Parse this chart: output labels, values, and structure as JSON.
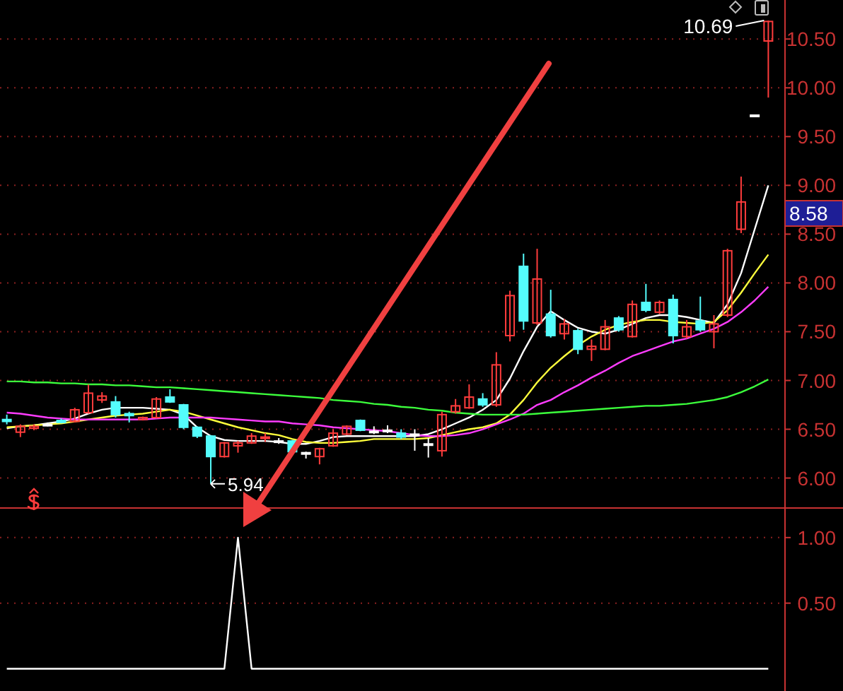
{
  "chart_data": [
    {
      "type": "candlestick",
      "categories": [
        null,
        null,
        null,
        null,
        null,
        null,
        null,
        null,
        null,
        null,
        null,
        null,
        null,
        null,
        null,
        null,
        null,
        null,
        null,
        null,
        null,
        null,
        null,
        null,
        null,
        null,
        null,
        null,
        null,
        null,
        null,
        null,
        null,
        null,
        null,
        null,
        null,
        null,
        null,
        null,
        null,
        null,
        null,
        null,
        null,
        null,
        null,
        null,
        null,
        null,
        null,
        null,
        null,
        null,
        null,
        null,
        null
      ],
      "ohlc": [
        [
          6.6,
          6.65,
          6.55,
          6.58
        ],
        [
          6.47,
          6.55,
          6.42,
          6.53
        ],
        [
          6.51,
          6.55,
          6.49,
          6.53
        ],
        [
          6.55,
          6.57,
          6.53,
          6.55
        ],
        [
          6.59,
          6.61,
          6.56,
          6.57
        ],
        [
          6.58,
          6.72,
          6.57,
          6.7
        ],
        [
          6.67,
          6.96,
          6.66,
          6.87
        ],
        [
          6.8,
          6.88,
          6.77,
          6.84
        ],
        [
          6.78,
          6.84,
          6.62,
          6.65
        ],
        [
          6.66,
          6.68,
          6.57,
          6.64
        ],
        [
          6.6,
          6.63,
          6.59,
          6.62
        ],
        [
          6.62,
          6.83,
          6.61,
          6.81
        ],
        [
          6.83,
          6.91,
          6.77,
          6.78
        ],
        [
          6.75,
          6.76,
          6.5,
          6.52
        ],
        [
          6.52,
          6.53,
          6.41,
          6.43
        ],
        [
          6.43,
          6.44,
          5.94,
          6.22
        ],
        [
          6.22,
          6.37,
          6.21,
          6.36
        ],
        [
          6.33,
          6.38,
          6.26,
          6.36
        ],
        [
          6.36,
          6.46,
          6.35,
          6.43
        ],
        [
          6.41,
          6.46,
          6.37,
          6.42
        ],
        [
          6.38,
          6.41,
          6.35,
          6.38
        ],
        [
          6.38,
          6.39,
          6.26,
          6.27
        ],
        [
          6.26,
          6.27,
          6.2,
          6.26
        ],
        [
          6.22,
          6.31,
          6.14,
          6.3
        ],
        [
          6.33,
          6.5,
          6.32,
          6.46
        ],
        [
          6.45,
          6.54,
          6.44,
          6.53
        ],
        [
          6.59,
          6.6,
          6.48,
          6.49
        ],
        [
          6.48,
          6.53,
          6.45,
          6.48
        ],
        [
          6.49,
          6.54,
          6.46,
          6.49
        ],
        [
          6.46,
          6.5,
          6.4,
          6.42
        ],
        [
          6.45,
          6.5,
          6.28,
          6.45
        ],
        [
          6.35,
          6.41,
          6.21,
          6.35
        ],
        [
          6.28,
          6.68,
          6.22,
          6.65
        ],
        [
          6.68,
          6.81,
          6.66,
          6.74
        ],
        [
          6.72,
          6.96,
          6.71,
          6.83
        ],
        [
          6.81,
          6.87,
          6.73,
          6.75
        ],
        [
          6.75,
          7.29,
          6.73,
          7.16
        ],
        [
          7.46,
          7.92,
          7.4,
          7.87
        ],
        [
          8.17,
          8.3,
          7.52,
          7.61
        ],
        [
          7.59,
          8.35,
          7.57,
          8.04
        ],
        [
          7.68,
          7.93,
          7.44,
          7.46
        ],
        [
          7.48,
          7.63,
          7.42,
          7.58
        ],
        [
          7.51,
          7.53,
          7.27,
          7.32
        ],
        [
          7.32,
          7.42,
          7.2,
          7.35
        ],
        [
          7.32,
          7.62,
          7.31,
          7.55
        ],
        [
          7.64,
          7.66,
          7.5,
          7.52
        ],
        [
          7.45,
          7.82,
          7.44,
          7.78
        ],
        [
          7.8,
          7.99,
          7.7,
          7.72
        ],
        [
          7.7,
          7.82,
          7.68,
          7.8
        ],
        [
          7.83,
          7.88,
          7.38,
          7.46
        ],
        [
          7.45,
          7.62,
          7.43,
          7.55
        ],
        [
          7.61,
          7.86,
          7.5,
          7.52
        ],
        [
          7.5,
          7.67,
          7.33,
          7.58
        ],
        [
          7.67,
          8.35,
          7.65,
          8.33
        ],
        [
          8.55,
          9.09,
          8.51,
          8.83
        ],
        [
          9.72,
          9.72,
          9.72,
          9.72
        ],
        [
          10.48,
          10.69,
          9.9,
          10.68
        ]
      ],
      "colors": [
        "#54fcfc",
        "#ff3c3c",
        "#ff3c3c",
        "#ffffff",
        "#54fcfc",
        "#ff3c3c",
        "#ff3c3c",
        "#ff3c3c",
        "#54fcfc",
        "#54fcfc",
        "#ff3c3c",
        "#ff3c3c",
        "#54fcfc",
        "#54fcfc",
        "#54fcfc",
        "#54fcfc",
        "#ff3c3c",
        "#ff3c3c",
        "#ff3c3c",
        "#ff3c3c",
        "#ffffff",
        "#54fcfc",
        "#ffffff",
        "#ff3c3c",
        "#ff3c3c",
        "#ff3c3c",
        "#54fcfc",
        "#ffffff",
        "#ffffff",
        "#54fcfc",
        "#ffffff",
        "#ffffff",
        "#ff3c3c",
        "#ff3c3c",
        "#ff3c3c",
        "#54fcfc",
        "#ff3c3c",
        "#ff3c3c",
        "#54fcfc",
        "#ff3c3c",
        "#54fcfc",
        "#ff3c3c",
        "#54fcfc",
        "#ff3c3c",
        "#ff3c3c",
        "#54fcfc",
        "#ff3c3c",
        "#54fcfc",
        "#ff3c3c",
        "#54fcfc",
        "#ff3c3c",
        "#54fcfc",
        "#ff3c3c",
        "#ff3c3c",
        "#ff3c3c",
        "#ffffff",
        "#ff3c3c"
      ],
      "series": [
        {
          "type": "line",
          "color": "#ffffff",
          "values": [
            6.51,
            6.53,
            6.54,
            6.56,
            6.58,
            6.61,
            6.66,
            6.7,
            6.72,
            6.72,
            6.72,
            6.71,
            6.7,
            6.65,
            6.52,
            6.43,
            6.39,
            6.38,
            6.38,
            6.38,
            6.37,
            6.35,
            6.35,
            6.38,
            6.42,
            6.43,
            6.43,
            6.43,
            6.43,
            6.43,
            6.43,
            6.45,
            6.5,
            6.56,
            6.62,
            6.7,
            6.8,
            7.02,
            7.3,
            7.55,
            7.71,
            7.62,
            7.54,
            7.5,
            7.48,
            7.52,
            7.58,
            7.64,
            7.67,
            7.67,
            7.65,
            7.62,
            7.59,
            7.78,
            8.1,
            8.55,
            9.0
          ]
        },
        {
          "type": "line",
          "color": "#ffff3c",
          "values": [
            6.52,
            6.53,
            6.54,
            6.55,
            6.56,
            6.58,
            6.6,
            6.62,
            6.64,
            6.65,
            6.66,
            6.68,
            6.7,
            6.68,
            6.64,
            6.6,
            6.56,
            6.52,
            6.49,
            6.46,
            6.44,
            6.4,
            6.37,
            6.36,
            6.36,
            6.37,
            6.38,
            6.4,
            6.4,
            6.4,
            6.4,
            6.41,
            6.44,
            6.47,
            6.5,
            6.52,
            6.56,
            6.65,
            6.8,
            6.98,
            7.13,
            7.25,
            7.36,
            7.45,
            7.52,
            7.57,
            7.6,
            7.62,
            7.62,
            7.6,
            7.59,
            7.58,
            7.6,
            7.72,
            7.9,
            8.1,
            8.29
          ]
        },
        {
          "type": "line",
          "color": "#ff3cff",
          "values": [
            6.67,
            6.66,
            6.64,
            6.62,
            6.61,
            6.6,
            6.6,
            6.6,
            6.6,
            6.6,
            6.6,
            6.61,
            6.62,
            6.62,
            6.62,
            6.62,
            6.61,
            6.6,
            6.59,
            6.58,
            6.58,
            6.56,
            6.55,
            6.54,
            6.52,
            6.51,
            6.5,
            6.49,
            6.48,
            6.46,
            6.44,
            6.43,
            6.43,
            6.44,
            6.46,
            6.5,
            6.55,
            6.6,
            6.66,
            6.75,
            6.8,
            6.88,
            6.95,
            7.03,
            7.1,
            7.18,
            7.25,
            7.3,
            7.35,
            7.4,
            7.43,
            7.48,
            7.53,
            7.6,
            7.7,
            7.82,
            7.96
          ]
        },
        {
          "type": "line",
          "color": "#3cff3c",
          "values": [
            6.99,
            6.99,
            6.98,
            6.98,
            6.97,
            6.97,
            6.96,
            6.96,
            6.95,
            6.95,
            6.94,
            6.93,
            6.93,
            6.92,
            6.91,
            6.9,
            6.89,
            6.88,
            6.87,
            6.86,
            6.85,
            6.84,
            6.83,
            6.82,
            6.8,
            6.79,
            6.78,
            6.76,
            6.75,
            6.73,
            6.72,
            6.7,
            6.69,
            6.67,
            6.66,
            6.65,
            6.65,
            6.65,
            6.65,
            6.66,
            6.67,
            6.68,
            6.69,
            6.7,
            6.71,
            6.72,
            6.73,
            6.74,
            6.74,
            6.75,
            6.76,
            6.78,
            6.8,
            6.83,
            6.88,
            6.94,
            7.01
          ]
        }
      ],
      "ylim": [
        5.7,
        10.9
      ],
      "yticks": [
        {
          "value": 6,
          "label": "6.00"
        },
        {
          "value": 6.5,
          "label": "6.50"
        },
        {
          "value": 7,
          "label": "7.00"
        },
        {
          "value": 7.5,
          "label": "7.50"
        },
        {
          "value": 8,
          "label": "8.00"
        },
        {
          "value": 8.5,
          "label": "8.50"
        },
        {
          "value": 9,
          "label": "9.00"
        },
        {
          "value": 9.5,
          "label": "9.50"
        },
        {
          "value": 10,
          "label": "10.00"
        },
        {
          "value": 10.5,
          "label": "10.50"
        }
      ],
      "grid": "y",
      "annotations": [
        "10.69",
        "5.94",
        "8.58"
      ]
    },
    {
      "type": "line",
      "categories": [
        null,
        null,
        null,
        null,
        null,
        null,
        null,
        null,
        null,
        null,
        null,
        null,
        null,
        null,
        null,
        null,
        null,
        null,
        null,
        null,
        null,
        null,
        null,
        null,
        null,
        null,
        null,
        null,
        null,
        null,
        null,
        null,
        null,
        null,
        null,
        null,
        null,
        null,
        null,
        null,
        null,
        null,
        null,
        null,
        null,
        null,
        null,
        null,
        null,
        null,
        null,
        null,
        null,
        null,
        null,
        null,
        null
      ],
      "series": [
        {
          "color": "#ffffff",
          "values": [
            0,
            0,
            0,
            0,
            0,
            0,
            0,
            0,
            0,
            0,
            0,
            0,
            0,
            0,
            0,
            0,
            0,
            1,
            0,
            0,
            0,
            0,
            0,
            0,
            0,
            0,
            0,
            0,
            0,
            0,
            0,
            0,
            0,
            0,
            0,
            0,
            0,
            0,
            0,
            0,
            0,
            0,
            0,
            0,
            0,
            0,
            0,
            0,
            0,
            0,
            0,
            0,
            0,
            0,
            0,
            0,
            0
          ]
        }
      ],
      "ylim": [
        -0.17,
        1.22
      ],
      "yticks": [
        {
          "value": 0.5,
          "label": "0.50"
        },
        {
          "value": 1,
          "label": "1.00"
        }
      ],
      "grid": "y"
    }
  ]
}
